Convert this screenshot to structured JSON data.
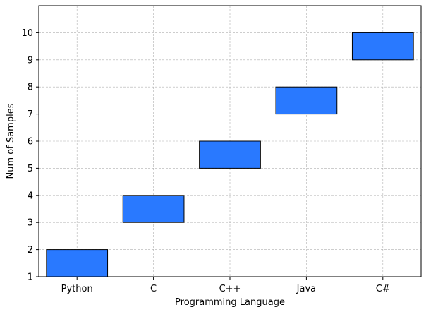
{
  "chart_data": {
    "type": "bar",
    "title": "",
    "xlabel": "Programming Language",
    "ylabel": "Num of Samples",
    "categories": [
      "Python",
      "C",
      "C++",
      "Java",
      "C#"
    ],
    "ranges": [
      [
        1,
        2
      ],
      [
        3,
        4
      ],
      [
        5,
        6
      ],
      [
        7,
        8
      ],
      [
        9,
        10
      ]
    ],
    "ylim": [
      1,
      11
    ],
    "yticks": [
      1,
      2,
      3,
      4,
      5,
      6,
      7,
      8,
      9,
      10
    ],
    "grid": true,
    "bar_color": "#2979FF",
    "edge_color": "#000000",
    "grid_color": "#b0b0b0"
  }
}
